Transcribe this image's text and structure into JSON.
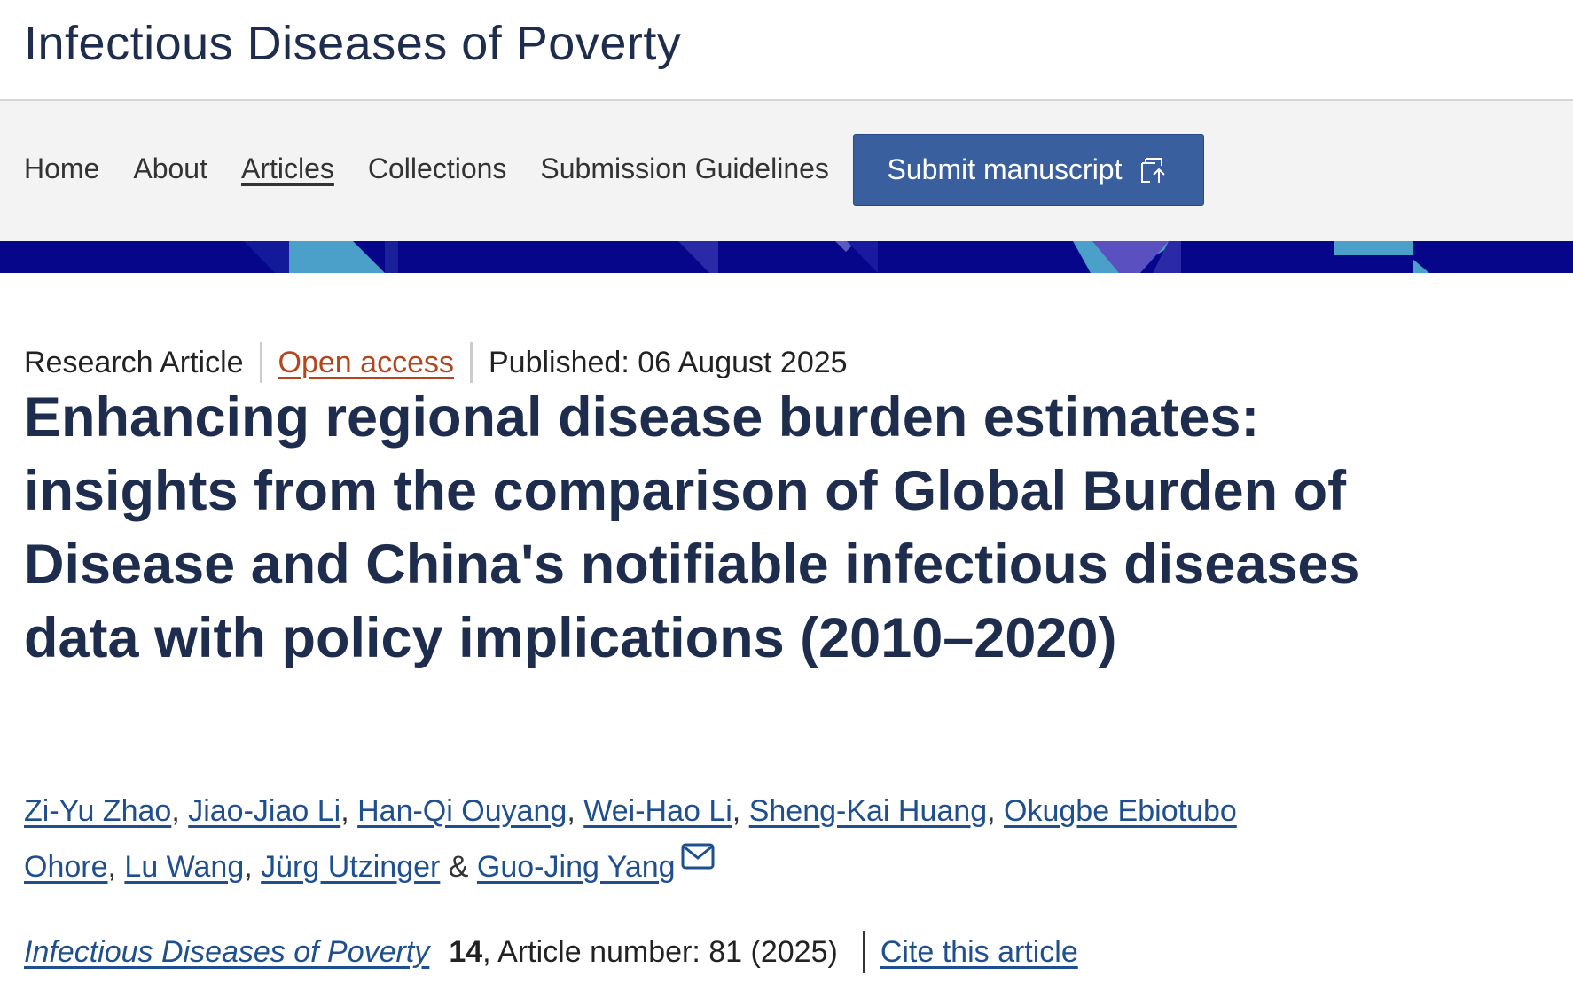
{
  "header": {
    "title": "Infectious Diseases of Poverty"
  },
  "nav": {
    "items": [
      "Home",
      "About",
      "Articles",
      "Collections",
      "Submission Guidelines"
    ],
    "current": "Articles",
    "submit": "Submit manuscript"
  },
  "article": {
    "type": "Research Article",
    "access": "Open access",
    "published": "Published: 06 August 2025",
    "title": "Enhancing regional disease burden estimates: insights from the comparison of Global Burden of Disease and China's notifiable infectious diseases data with policy implications (2010–2020)",
    "authors": [
      {
        "name": "Zi-Yu Zhao",
        "after": ", "
      },
      {
        "name": "Jiao-Jiao Li",
        "after": ", "
      },
      {
        "name": "Han-Qi Ouyang",
        "after": ", "
      },
      {
        "name": "Wei-Hao Li",
        "after": ", "
      },
      {
        "name": "Sheng-Kai Huang",
        "after": ", "
      },
      {
        "name": "Okugbe Ebiotubo Ohore",
        "after": ", "
      },
      {
        "name": "Lu Wang",
        "after": ", "
      },
      {
        "name": "Jürg Utzinger",
        "after": " & "
      },
      {
        "name": "Guo-Jing Yang",
        "after": ""
      }
    ],
    "journal": "Infectious Diseases of Poverty",
    "volume": "14",
    "article_number": ", Article number: 81 (2025)",
    "cite": "Cite this article"
  }
}
